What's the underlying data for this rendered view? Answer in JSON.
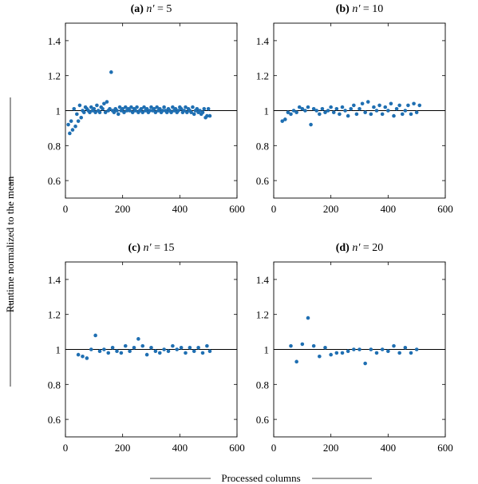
{
  "figure": {
    "ylabel": "Runtime normalized to the mean",
    "xlabel": "Processed columns"
  },
  "chart_data": [
    {
      "type": "scatter",
      "title_prefix": "(a)",
      "title_var": "n′",
      "title_value": "= 5",
      "xlim": [
        0,
        600
      ],
      "ylim": [
        0.5,
        1.5
      ],
      "xticks": [
        0,
        200,
        400,
        600
      ],
      "yticks": [
        0.6,
        0.8,
        1,
        1.2,
        1.4
      ],
      "reference_line": 1,
      "marker_color": "#1f6fb2",
      "x": [
        10,
        15,
        20,
        25,
        30,
        35,
        40,
        45,
        50,
        55,
        60,
        65,
        70,
        75,
        80,
        85,
        90,
        95,
        100,
        105,
        110,
        115,
        120,
        125,
        130,
        135,
        140,
        145,
        150,
        155,
        160,
        165,
        170,
        175,
        180,
        185,
        190,
        195,
        200,
        205,
        210,
        215,
        220,
        225,
        230,
        235,
        240,
        245,
        250,
        255,
        260,
        265,
        270,
        275,
        280,
        285,
        290,
        295,
        300,
        305,
        310,
        315,
        320,
        325,
        330,
        335,
        340,
        345,
        350,
        355,
        360,
        365,
        370,
        375,
        380,
        385,
        390,
        395,
        400,
        405,
        410,
        415,
        420,
        425,
        430,
        435,
        440,
        445,
        450,
        455,
        460,
        465,
        470,
        475,
        480,
        485,
        490,
        495,
        500,
        505
      ],
      "y": [
        0.92,
        0.87,
        0.94,
        0.89,
        1.01,
        0.91,
        0.98,
        0.94,
        1.03,
        0.96,
        1.0,
        0.99,
        1.02,
        1.01,
        1.0,
        0.99,
        1.02,
        1.0,
        1.01,
        0.99,
        1.03,
        1.0,
        0.99,
        1.02,
        1.01,
        1.04,
        0.99,
        1.05,
        1.0,
        1.01,
        1.22,
        1.0,
        0.99,
        1.01,
        1.0,
        0.98,
        1.02,
        1.0,
        1.01,
        0.99,
        1.02,
        1.0,
        1.01,
        1.0,
        1.02,
        0.99,
        1.01,
        1.0,
        1.02,
        0.99,
        1.0,
        1.01,
        0.99,
        1.02,
        1.0,
        1.01,
        0.99,
        1.0,
        1.02,
        1.0,
        1.01,
        0.99,
        1.02,
        1.0,
        1.01,
        0.99,
        1.0,
        1.02,
        1.0,
        0.99,
        1.01,
        1.0,
        0.99,
        1.02,
        1.0,
        1.01,
        0.99,
        1.0,
        1.02,
        1.01,
        0.99,
        1.0,
        1.02,
        0.99,
        1.01,
        1.0,
        0.99,
        1.02,
        0.98,
        1.0,
        1.01,
        0.99,
        1.0,
        0.98,
        0.99,
        1.01,
        0.96,
        0.97,
        1.01,
        0.97
      ]
    },
    {
      "type": "scatter",
      "title_prefix": "(b)",
      "title_var": "n′",
      "title_value": "= 10",
      "xlim": [
        0,
        600
      ],
      "ylim": [
        0.5,
        1.5
      ],
      "xticks": [
        0,
        200,
        400,
        600
      ],
      "yticks": [
        0.6,
        0.8,
        1,
        1.2,
        1.4
      ],
      "reference_line": 1,
      "marker_color": "#1f6fb2",
      "x": [
        30,
        40,
        50,
        60,
        70,
        80,
        90,
        100,
        110,
        120,
        130,
        140,
        150,
        160,
        170,
        180,
        190,
        200,
        210,
        220,
        230,
        240,
        250,
        260,
        270,
        280,
        290,
        300,
        310,
        320,
        330,
        340,
        350,
        360,
        370,
        380,
        390,
        400,
        410,
        420,
        430,
        440,
        450,
        460,
        470,
        480,
        490,
        500,
        510
      ],
      "y": [
        0.94,
        0.95,
        0.99,
        0.98,
        1.0,
        0.99,
        1.02,
        1.01,
        1.0,
        1.02,
        0.92,
        1.01,
        1.0,
        0.98,
        1.01,
        0.99,
        1.0,
        1.02,
        0.99,
        1.01,
        0.98,
        1.02,
        1.0,
        0.97,
        1.01,
        1.03,
        0.98,
        1.01,
        1.04,
        0.99,
        1.05,
        0.98,
        1.02,
        1.0,
        1.03,
        0.98,
        1.02,
        1.0,
        1.04,
        0.97,
        1.01,
        1.03,
        0.98,
        1.0,
        1.03,
        0.98,
        1.04,
        0.99,
        1.03
      ]
    },
    {
      "type": "scatter",
      "title_prefix": "(c)",
      "title_var": "n′",
      "title_value": "= 15",
      "xlim": [
        0,
        600
      ],
      "ylim": [
        0.5,
        1.5
      ],
      "xticks": [
        0,
        200,
        400,
        600
      ],
      "yticks": [
        0.6,
        0.8,
        1,
        1.2,
        1.4
      ],
      "reference_line": 1,
      "marker_color": "#1f6fb2",
      "x": [
        45,
        60,
        75,
        90,
        105,
        120,
        135,
        150,
        165,
        180,
        195,
        210,
        225,
        240,
        255,
        270,
        285,
        300,
        315,
        330,
        345,
        360,
        375,
        390,
        405,
        420,
        435,
        450,
        465,
        480,
        495,
        505
      ],
      "y": [
        0.97,
        0.96,
        0.95,
        1.0,
        1.08,
        0.99,
        1.0,
        0.98,
        1.01,
        0.99,
        0.98,
        1.02,
        0.99,
        1.01,
        1.06,
        1.02,
        0.97,
        1.01,
        0.99,
        0.98,
        1.0,
        0.99,
        1.02,
        1.0,
        1.01,
        0.98,
        1.01,
        0.99,
        1.01,
        0.98,
        1.02,
        0.99
      ]
    },
    {
      "type": "scatter",
      "title_prefix": "(d)",
      "title_var": "n′",
      "title_value": "= 20",
      "xlim": [
        0,
        600
      ],
      "ylim": [
        0.5,
        1.5
      ],
      "xticks": [
        0,
        200,
        400,
        600
      ],
      "yticks": [
        0.6,
        0.8,
        1,
        1.2,
        1.4
      ],
      "reference_line": 1,
      "marker_color": "#1f6fb2",
      "x": [
        60,
        80,
        100,
        120,
        140,
        160,
        180,
        200,
        220,
        240,
        260,
        280,
        300,
        320,
        340,
        360,
        380,
        400,
        420,
        440,
        460,
        480,
        500
      ],
      "y": [
        1.02,
        0.93,
        1.03,
        1.18,
        1.02,
        0.96,
        1.01,
        0.97,
        0.98,
        0.98,
        0.99,
        1.0,
        1.0,
        0.92,
        1.0,
        0.98,
        1.0,
        0.99,
        1.02,
        0.98,
        1.01,
        0.98,
        1.0
      ]
    }
  ]
}
